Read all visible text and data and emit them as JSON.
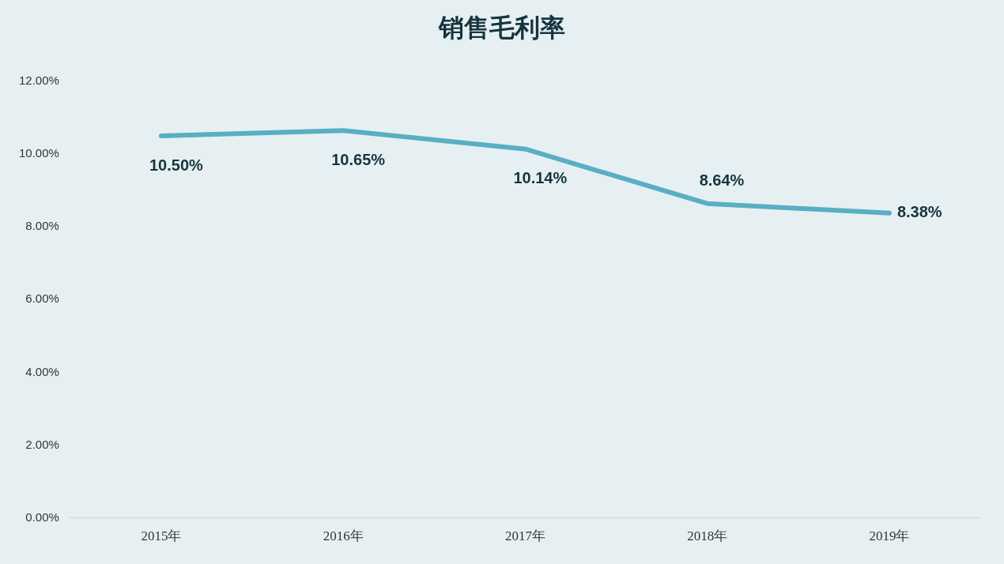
{
  "chart_data": {
    "type": "line",
    "title": "销售毛利率",
    "categories": [
      "2015年",
      "2016年",
      "2017年",
      "2018年",
      "2019年"
    ],
    "series": [
      {
        "color": "#5aaec4",
        "values": [
          10.5,
          10.65,
          10.14,
          8.64,
          8.38
        ],
        "value_labels": [
          "10.50%",
          "10.65%",
          "10.14%",
          "8.64%",
          "8.38%"
        ]
      }
    ],
    "ylim": [
      0,
      12
    ],
    "yticks": [
      {
        "value": 0,
        "label": "0.00%"
      },
      {
        "value": 2,
        "label": "2.00%"
      },
      {
        "value": 4,
        "label": "4.00%"
      },
      {
        "value": 6,
        "label": "6.00%"
      },
      {
        "value": 8,
        "label": "8.00%"
      },
      {
        "value": 10,
        "label": "10.00%"
      },
      {
        "value": 12,
        "label": "12.00%"
      }
    ],
    "grid": false,
    "legend": false,
    "marker": "none",
    "line_style": "solid"
  }
}
